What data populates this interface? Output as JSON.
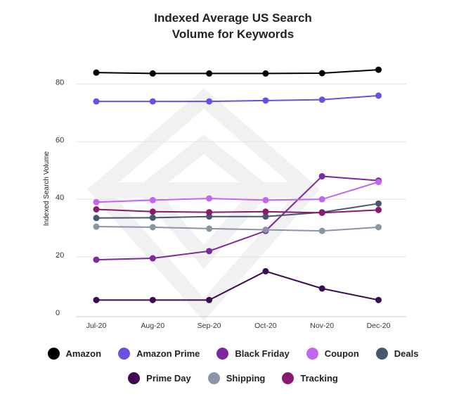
{
  "chart_data": {
    "type": "line",
    "title_lines": [
      "Indexed Average US Search",
      "Volume for Keywords"
    ],
    "ylabel": "Indexed Search Volume",
    "xlabel": "",
    "categories": [
      "Jul-20",
      "Aug-20",
      "Sep-20",
      "Oct-20",
      "Nov-20",
      "Dec-20"
    ],
    "yticks": [
      0,
      20,
      40,
      60,
      80
    ],
    "ylim": [
      -2,
      86
    ],
    "grid": true,
    "legend_position": "bottom",
    "series": [
      {
        "name": "Amazon",
        "color": "#000000",
        "values": [
          84,
          83.7,
          83.7,
          83.7,
          83.8,
          85
        ]
      },
      {
        "name": "Amazon Prime",
        "color": "#6b4fe0",
        "values": [
          74,
          74,
          74,
          74.3,
          74.6,
          76
        ]
      },
      {
        "name": "Black Friday",
        "color": "#7a2a9e",
        "values": [
          19,
          19.5,
          22,
          29,
          48,
          46.5
        ]
      },
      {
        "name": "Coupon",
        "color": "#c066f0",
        "values": [
          39,
          39.7,
          40.3,
          39.7,
          40,
          46
        ]
      },
      {
        "name": "Deals",
        "color": "#44596f",
        "values": [
          33.5,
          33.6,
          34,
          34,
          35.5,
          38.5
        ]
      },
      {
        "name": "Prime Day",
        "color": "#3d0b52",
        "values": [
          5,
          5,
          5,
          15,
          9,
          5
        ]
      },
      {
        "name": "Shipping",
        "color": "#8a94a6",
        "values": [
          30.5,
          30.3,
          29.8,
          29.4,
          29,
          30.3
        ]
      },
      {
        "name": "Tracking",
        "color": "#8b1a6e",
        "values": [
          36.5,
          35.7,
          35.5,
          35.7,
          35.3,
          36.3
        ]
      }
    ]
  }
}
